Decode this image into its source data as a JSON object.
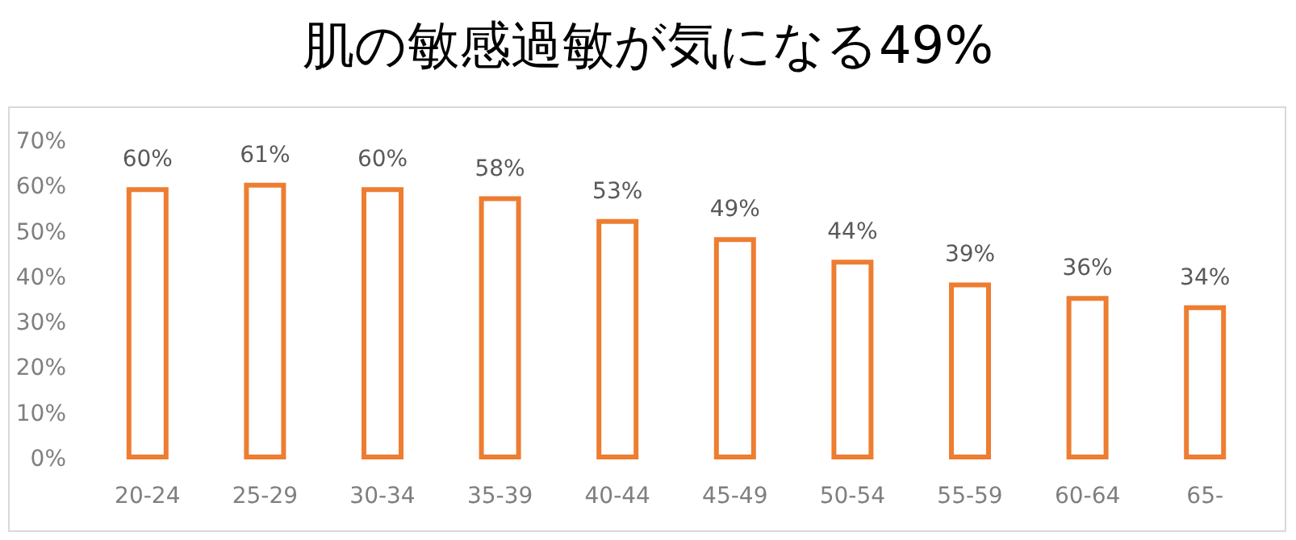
{
  "chart_data": {
    "type": "bar",
    "title": "肌の敏感過敏が気になる49%",
    "categories": [
      "20-24",
      "25-29",
      "30-34",
      "35-39",
      "40-44",
      "45-49",
      "50-54",
      "55-59",
      "60-64",
      "65-"
    ],
    "values": [
      60,
      61,
      60,
      58,
      53,
      49,
      44,
      39,
      36,
      34
    ],
    "value_labels": [
      "60%",
      "61%",
      "60%",
      "58%",
      "53%",
      "49%",
      "44%",
      "39%",
      "36%",
      "34%"
    ],
    "color": "#ed7d31",
    "ylim": [
      0,
      70
    ],
    "yticks": [
      {
        "value": 0,
        "label": "0%"
      },
      {
        "value": 10,
        "label": "10%"
      },
      {
        "value": 20,
        "label": "20%"
      },
      {
        "value": 30,
        "label": "30%"
      },
      {
        "value": 40,
        "label": "40%"
      },
      {
        "value": 50,
        "label": "50%"
      },
      {
        "value": 60,
        "label": "60%"
      },
      {
        "value": 70,
        "label": "70%"
      }
    ]
  }
}
